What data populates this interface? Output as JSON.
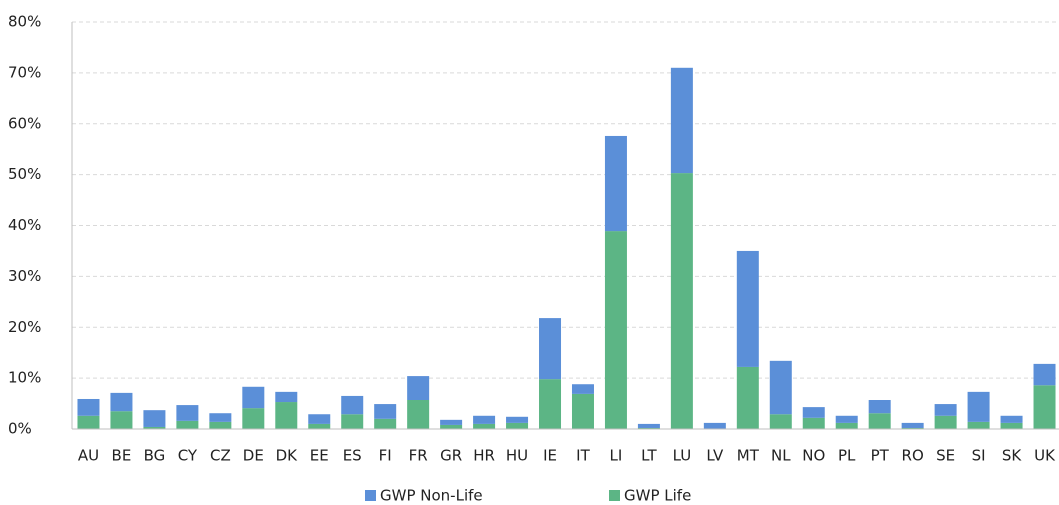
{
  "chart_data": {
    "type": "stacked_bar",
    "categories": [
      "AU",
      "BE",
      "BG",
      "CY",
      "CZ",
      "DE",
      "DK",
      "EE",
      "ES",
      "FI",
      "FR",
      "GR",
      "HR",
      "HU",
      "IE",
      "IT",
      "LI",
      "LT",
      "LU",
      "LV",
      "MT",
      "NL",
      "NO",
      "PL",
      "PT",
      "RO",
      "SE",
      "SI",
      "SK",
      "UK"
    ],
    "series": [
      {
        "name": "GWP Non-Life",
        "color": "#5b8fd8",
        "values": [
          3.3,
          3.6,
          3.3,
          3.1,
          1.7,
          4.2,
          2.0,
          1.9,
          3.6,
          2.9,
          4.7,
          1.0,
          1.6,
          1.2,
          12.0,
          1.9,
          18.7,
          0.8,
          20.7,
          1.1,
          22.8,
          10.5,
          2.1,
          1.4,
          2.6,
          1.0,
          2.3,
          5.9,
          1.4,
          4.2
        ]
      },
      {
        "name": "GWP Life",
        "color": "#5cb585",
        "values": [
          2.6,
          3.5,
          0.4,
          1.6,
          1.4,
          4.1,
          5.3,
          1.0,
          2.9,
          2.0,
          5.7,
          0.8,
          1.0,
          1.2,
          9.8,
          6.9,
          38.9,
          0.2,
          50.3,
          0.1,
          12.2,
          2.9,
          2.2,
          1.2,
          3.1,
          0.2,
          2.6,
          1.4,
          1.2,
          8.6
        ]
      }
    ],
    "ylim": [
      0,
      80
    ],
    "yticks": [
      {
        "value": 0,
        "label": "0%"
      },
      {
        "value": 10,
        "label": "10%"
      },
      {
        "value": 20,
        "label": "20%"
      },
      {
        "value": 30,
        "label": "30%"
      },
      {
        "value": 40,
        "label": "40%"
      },
      {
        "value": 50,
        "label": "50%"
      },
      {
        "value": 60,
        "label": "60%"
      },
      {
        "value": 70,
        "label": "70%"
      },
      {
        "value": 80,
        "label": "80%"
      }
    ],
    "grid": true,
    "legend": "bottom"
  }
}
